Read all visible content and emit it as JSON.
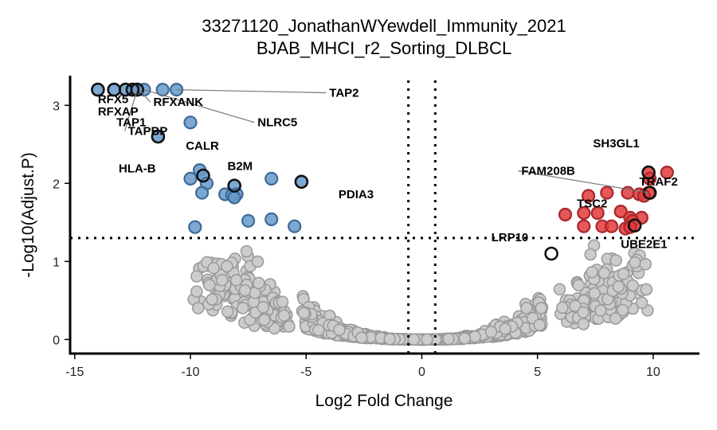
{
  "chart_data": {
    "type": "scatter",
    "title": "33271120_JonathanWYewdell_Immunity_2021",
    "subtitle": "BJAB_MHCI_r2_Sorting_DLBCL",
    "xlabel": "Log2 Fold Change",
    "ylabel": "-Log10(Adjust.P)",
    "xlim": [
      -15.2,
      12.0
    ],
    "ylim": [
      -0.18,
      3.38
    ],
    "xticks": [
      -15,
      -10,
      -5,
      0,
      5,
      10
    ],
    "yticks": [
      0,
      1,
      2,
      3
    ],
    "thresholds": {
      "x": [
        -0.58,
        0.58
      ],
      "y": 1.3
    },
    "colors": {
      "down": "#6699CC",
      "down_stroke": "#3D6A96",
      "down_dark": "#3E7BB6",
      "up": "#E0393B",
      "up_stroke": "#A8282B",
      "ns": "#CCCCCC",
      "ns_stroke": "#999999",
      "highlight_stroke": "#111111"
    },
    "series": [
      {
        "group": "down",
        "points": [
          [
            -14.0,
            3.2
          ],
          [
            -13.3,
            3.2
          ],
          [
            -12.8,
            3.2
          ],
          [
            -12.5,
            3.2
          ],
          [
            -12.3,
            3.2
          ],
          [
            -12.0,
            3.2
          ],
          [
            -11.2,
            3.2
          ],
          [
            -10.6,
            3.2
          ],
          [
            -10.0,
            2.78
          ],
          [
            -11.4,
            2.6
          ],
          [
            -9.6,
            2.17
          ],
          [
            -9.45,
            2.1
          ],
          [
            -10.0,
            2.06
          ],
          [
            -9.3,
            2.0
          ],
          [
            -9.5,
            1.88
          ],
          [
            -8.5,
            1.86
          ],
          [
            -8.1,
            1.97
          ],
          [
            -8.0,
            1.86
          ],
          [
            -8.2,
            1.85
          ],
          [
            -8.1,
            1.82
          ],
          [
            -6.5,
            2.06
          ],
          [
            -5.2,
            2.02
          ],
          [
            -7.5,
            1.52
          ],
          [
            -6.5,
            1.54
          ],
          [
            -5.5,
            1.45
          ],
          [
            -9.8,
            1.44
          ]
        ]
      },
      {
        "group": "up",
        "points": [
          [
            9.8,
            2.14
          ],
          [
            10.6,
            2.14
          ],
          [
            9.85,
            2.06
          ],
          [
            9.8,
            1.88
          ],
          [
            9.4,
            1.86
          ],
          [
            8.9,
            1.88
          ],
          [
            8.0,
            1.88
          ],
          [
            7.2,
            1.84
          ],
          [
            9.6,
            1.84
          ],
          [
            6.2,
            1.6
          ],
          [
            7.0,
            1.62
          ],
          [
            7.6,
            1.62
          ],
          [
            8.6,
            1.64
          ],
          [
            9.0,
            1.56
          ],
          [
            9.5,
            1.56
          ],
          [
            9.1,
            1.52
          ],
          [
            7.0,
            1.45
          ],
          [
            7.8,
            1.45
          ],
          [
            8.2,
            1.45
          ],
          [
            9.2,
            1.46
          ],
          [
            8.8,
            1.42
          ],
          [
            9.0,
            1.44
          ]
        ]
      },
      {
        "group": "highlight",
        "points": [
          [
            -14.0,
            3.2
          ],
          [
            -13.3,
            3.2
          ],
          [
            -12.8,
            3.2
          ],
          [
            -12.5,
            3.2
          ],
          [
            -12.3,
            3.2
          ],
          [
            -11.4,
            2.6
          ],
          [
            -9.45,
            2.1
          ],
          [
            -8.1,
            1.97
          ],
          [
            -5.2,
            2.02
          ],
          [
            9.8,
            2.14
          ],
          [
            9.85,
            1.88
          ],
          [
            5.6,
            1.1
          ],
          [
            9.2,
            1.46
          ]
        ]
      }
    ],
    "labels": [
      {
        "text": "TAP2",
        "x": -4.0,
        "y": 3.11,
        "lx": -10.6,
        "ly": 3.2
      },
      {
        "text": "RFX5",
        "x": -14.0,
        "y": 3.03
      },
      {
        "text": "RFXANK",
        "x": -11.6,
        "y": 2.99,
        "lx": -12.2,
        "ly": 3.2
      },
      {
        "text": "RFXAP",
        "x": -14.0,
        "y": 2.87
      },
      {
        "text": "NLRC5",
        "x": -7.1,
        "y": 2.73,
        "lx": -12.0,
        "ly": 3.2
      },
      {
        "text": "TAP1",
        "x": -13.2,
        "y": 2.73
      },
      {
        "text": "TAPBP",
        "x": -12.7,
        "y": 2.62,
        "lx": -12.3,
        "ly": 3.2
      },
      {
        "text": "CALR",
        "x": -10.2,
        "y": 2.43
      },
      {
        "text": "HLA-B",
        "x": -13.1,
        "y": 2.14
      },
      {
        "text": "B2M",
        "x": -8.4,
        "y": 2.17
      },
      {
        "text": "PDIA3",
        "x": -3.6,
        "y": 1.81
      },
      {
        "text": "SH3GL1",
        "x": 7.4,
        "y": 2.46
      },
      {
        "text": "FAM208B",
        "x": 4.3,
        "y": 2.11,
        "lx": 9.8,
        "ly": 1.88
      },
      {
        "text": "TRAF2",
        "x": 9.4,
        "y": 1.97
      },
      {
        "text": "TSC2",
        "x": 6.7,
        "y": 1.69
      },
      {
        "text": "LRP10",
        "x": 3.0,
        "y": 1.26
      },
      {
        "text": "UBE2E1",
        "x": 8.6,
        "y": 1.17
      }
    ]
  }
}
